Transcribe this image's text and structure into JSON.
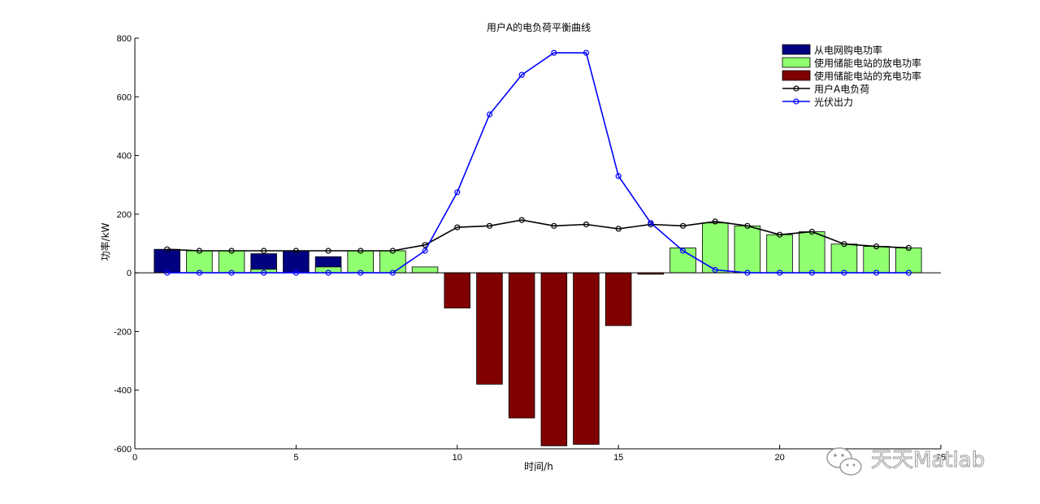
{
  "chart_data": {
    "type": "bar",
    "title": "用户A的电负荷平衡曲线",
    "xlabel": "时间/h",
    "ylabel": "功率/kW",
    "xlim": [
      0,
      25
    ],
    "ylim": [
      -600,
      800
    ],
    "xticks": [
      0,
      5,
      10,
      15,
      20,
      25
    ],
    "yticks": [
      -600,
      -400,
      -200,
      0,
      200,
      400,
      600,
      800
    ],
    "xtick_labels": [
      "0",
      "5",
      "10",
      "15",
      "20",
      "25"
    ],
    "ytick_labels": [
      "-600",
      "-400",
      "-200",
      "0",
      "200",
      "400",
      "600",
      "800"
    ],
    "legend_position": "top-right",
    "x": [
      1,
      2,
      3,
      4,
      5,
      6,
      7,
      8,
      9,
      10,
      11,
      12,
      13,
      14,
      15,
      16,
      17,
      18,
      19,
      20,
      21,
      22,
      23,
      24
    ],
    "series": [
      {
        "name": "从电网购电功率",
        "kind": "bar",
        "color": "#000080",
        "values": [
          80,
          0,
          0,
          65,
          75,
          55,
          0,
          0,
          0,
          0,
          0,
          0,
          0,
          0,
          0,
          0,
          0,
          0,
          0,
          0,
          0,
          0,
          0,
          0
        ]
      },
      {
        "name": "使用储能电站的放电功率",
        "kind": "bar",
        "color": "#90ff70",
        "values": [
          0,
          75,
          75,
          12,
          0,
          20,
          75,
          75,
          20,
          0,
          0,
          0,
          0,
          0,
          0,
          0,
          85,
          170,
          160,
          130,
          140,
          98,
          90,
          85
        ]
      },
      {
        "name": "使用储能电站的充电功率",
        "kind": "bar",
        "color": "#800000",
        "values": [
          0,
          0,
          0,
          0,
          0,
          0,
          0,
          0,
          0,
          -120,
          -380,
          -495,
          -590,
          -585,
          -180,
          -5,
          0,
          0,
          0,
          0,
          0,
          0,
          0,
          0
        ]
      },
      {
        "name": "用户A电负荷",
        "kind": "line",
        "color": "#000000",
        "values": [
          80,
          75,
          75,
          75,
          75,
          75,
          75,
          75,
          95,
          155,
          160,
          180,
          160,
          165,
          150,
          165,
          160,
          175,
          160,
          130,
          140,
          98,
          90,
          85
        ]
      },
      {
        "name": "光伏出力",
        "kind": "line",
        "color": "#0000ff",
        "values": [
          0,
          0,
          0,
          0,
          0,
          0,
          0,
          0,
          75,
          275,
          540,
          675,
          750,
          750,
          330,
          170,
          75,
          10,
          0,
          0,
          0,
          0,
          0,
          0
        ]
      }
    ]
  },
  "watermark": {
    "text": "天天Matlab",
    "icon": "wechat-icon"
  }
}
